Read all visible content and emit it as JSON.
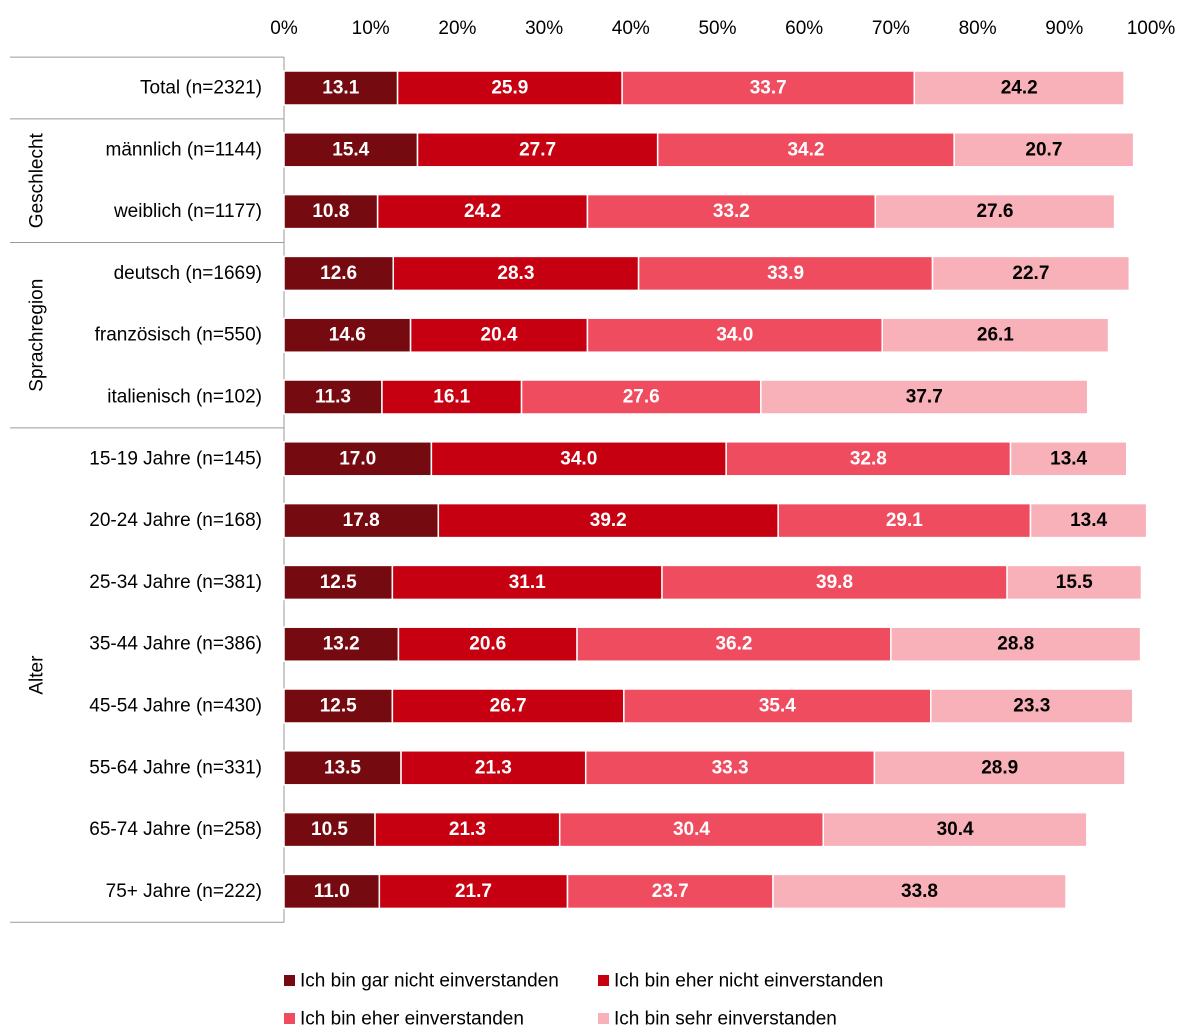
{
  "chart_data": {
    "type": "bar",
    "orientation": "horizontal",
    "stacked": true,
    "percent": true,
    "xlim": [
      0,
      100
    ],
    "xticks": [
      "0%",
      "10%",
      "20%",
      "30%",
      "40%",
      "50%",
      "60%",
      "70%",
      "80%",
      "90%",
      "100%"
    ],
    "xaxis_position": "top",
    "grid": false,
    "legend_position": "bottom",
    "categories": [
      "Total (n=2321)",
      "männlich (n=1144)",
      "weiblich (n=1177)",
      "deutsch (n=1669)",
      "französisch (n=550)",
      "italienisch (n=102)",
      "15-19 Jahre (n=145)",
      "20-24 Jahre (n=168)",
      "25-34 Jahre (n=381)",
      "35-44 Jahre (n=386)",
      "45-54 Jahre (n=430)",
      "55-64 Jahre (n=331)",
      "65-74 Jahre (n=258)",
      "75+ Jahre (n=222)"
    ],
    "groups": [
      {
        "label": "",
        "start": 0,
        "end": 0
      },
      {
        "label": "Geschlecht",
        "start": 1,
        "end": 2
      },
      {
        "label": "Sprachregion",
        "start": 3,
        "end": 5
      },
      {
        "label": "Alter",
        "start": 6,
        "end": 13
      }
    ],
    "series": [
      {
        "name": "Ich bin gar nicht einverstanden",
        "color": "#750b10",
        "label_color": "#ffffff",
        "values": [
          13.1,
          15.4,
          10.8,
          12.6,
          14.6,
          11.3,
          17.0,
          17.8,
          12.5,
          13.2,
          12.5,
          13.5,
          10.5,
          11.0
        ]
      },
      {
        "name": "Ich bin eher nicht einverstanden",
        "color": "#c60010",
        "label_color": "#ffffff",
        "values": [
          25.9,
          27.7,
          24.2,
          28.3,
          20.4,
          16.1,
          34.0,
          39.2,
          31.1,
          20.6,
          26.7,
          21.3,
          21.3,
          21.7
        ]
      },
      {
        "name": "Ich bin eher einverstanden",
        "color": "#f04c5f",
        "label_color": "#ffffff",
        "values": [
          33.7,
          34.2,
          33.2,
          33.9,
          34.0,
          27.6,
          32.8,
          29.1,
          39.8,
          36.2,
          35.4,
          33.3,
          30.4,
          23.7
        ]
      },
      {
        "name": "Ich bin sehr einverstanden",
        "color": "#f8b1b8",
        "label_color": "#000000",
        "values": [
          24.2,
          20.7,
          27.6,
          22.7,
          26.1,
          37.7,
          13.4,
          13.4,
          15.5,
          28.8,
          23.3,
          28.9,
          30.4,
          33.8
        ]
      }
    ]
  }
}
